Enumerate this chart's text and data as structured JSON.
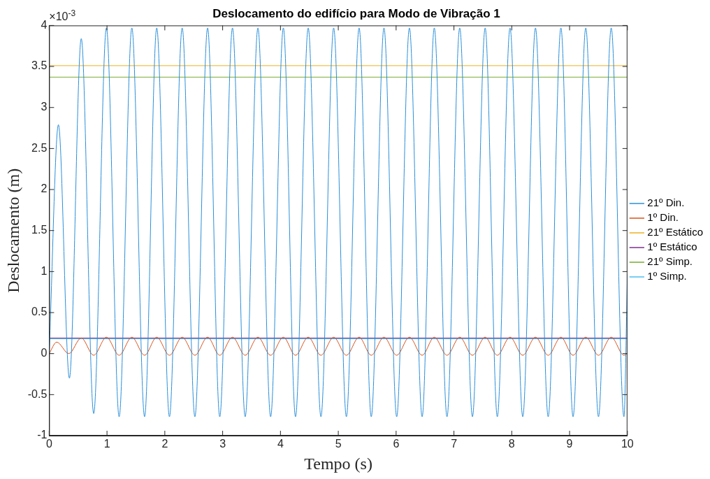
{
  "chart_data": {
    "type": "line",
    "title": "Deslocamento do edifício para Modo de Vibração 1",
    "xlabel": "Tempo (s)",
    "ylabel": "Deslocamento (m)",
    "annotations": [
      "×10$^{-3}$"
    ],
    "xlim": [
      0,
      10
    ],
    "xticks": [
      0,
      1,
      2,
      3,
      4,
      5,
      6,
      7,
      8,
      9,
      10
    ],
    "ylim": [
      -1,
      4
    ],
    "yticks": [
      -1,
      -0.5,
      0,
      0.5,
      1,
      1.5,
      2,
      2.5,
      3,
      3.5,
      4
    ],
    "legend": "right",
    "marker": "none",
    "line_style": "solid",
    "series": [
      {
        "name": "21º Din.",
        "color": "#2b8fd9",
        "x": [
          0,
          0.16,
          0.35,
          0.555,
          0.77,
          0.99,
          1.21,
          1.43,
          1.65,
          1.86,
          2.08,
          2.3,
          2.52,
          2.74,
          2.95,
          3.17,
          3.39,
          3.61,
          3.83,
          4.05,
          4.26,
          4.48,
          4.7,
          4.92,
          5.14,
          5.36,
          5.57,
          5.79,
          6.01,
          6.23,
          6.45,
          6.66,
          6.88,
          7.1,
          7.32,
          7.54,
          7.75,
          7.97,
          8.19,
          8.41,
          8.63,
          8.85,
          9.06,
          9.28,
          9.5,
          9.72,
          9.94,
          10
        ],
        "values": [
          0,
          2.79,
          -0.3,
          3.84,
          -0.73,
          3.97,
          -0.77,
          3.97,
          -0.77,
          3.97,
          -0.77,
          3.97,
          -0.77,
          3.97,
          -0.77,
          3.97,
          -0.77,
          3.97,
          -0.77,
          3.97,
          -0.77,
          3.97,
          -0.77,
          3.97,
          -0.77,
          3.97,
          -0.77,
          3.97,
          -0.77,
          3.97,
          -0.77,
          3.97,
          -0.77,
          3.97,
          -0.77,
          3.97,
          -0.77,
          3.97,
          -0.77,
          3.97,
          -0.77,
          3.97,
          -0.77,
          3.97,
          -0.77,
          3.97,
          -0.77,
          0.97
        ]
      },
      {
        "name": "1º Din.",
        "color": "#d95319",
        "x": [
          0,
          0.13,
          0.34,
          0.555,
          0.77,
          0.99,
          1.21,
          1.43,
          1.65,
          1.86,
          2.08,
          2.3,
          2.52,
          2.74,
          2.95,
          3.17,
          3.39,
          3.61,
          3.83,
          4.05,
          4.26,
          4.48,
          4.7,
          4.92,
          5.14,
          5.36,
          5.57,
          5.79,
          6.01,
          6.23,
          6.45,
          6.66,
          6.88,
          7.1,
          7.32,
          7.54,
          7.75,
          7.97,
          8.19,
          8.41,
          8.63,
          8.85,
          9.06,
          9.28,
          9.5,
          9.72,
          9.94,
          10
        ],
        "values": [
          0,
          0.14,
          0,
          0.19,
          -0.02,
          0.2,
          -0.02,
          0.2,
          -0.02,
          0.2,
          -0.02,
          0.2,
          -0.02,
          0.2,
          -0.02,
          0.2,
          -0.02,
          0.2,
          -0.02,
          0.2,
          -0.02,
          0.2,
          -0.02,
          0.2,
          -0.02,
          0.2,
          -0.02,
          0.2,
          -0.02,
          0.2,
          -0.02,
          0.2,
          -0.02,
          0.2,
          -0.02,
          0.2,
          -0.02,
          0.2,
          -0.02,
          0.2,
          -0.02,
          0.2,
          -0.02,
          0.2,
          -0.02,
          0.2,
          -0.02,
          0
        ]
      },
      {
        "name": "21º Estático",
        "color": "#edb120",
        "x": [
          0,
          10
        ],
        "values": [
          3.51,
          3.51
        ]
      },
      {
        "name": "1º Estático",
        "color": "#7e2f8e",
        "x": [
          0,
          10
        ],
        "values": [
          0.19,
          0.19
        ]
      },
      {
        "name": "21º Simp.",
        "color": "#77ac30",
        "x": [
          0,
          10
        ],
        "values": [
          3.37,
          3.37
        ]
      },
      {
        "name": "1º Simp.",
        "color": "#4dbeee",
        "x": [
          0,
          10
        ],
        "values": [
          0.18,
          0.18
        ]
      }
    ]
  }
}
